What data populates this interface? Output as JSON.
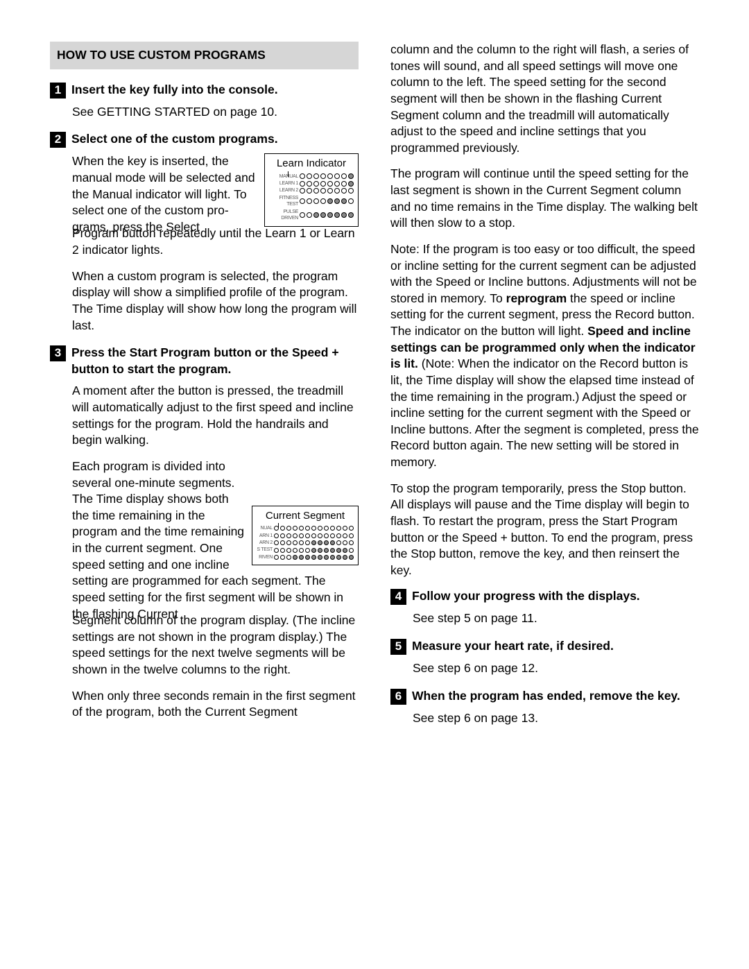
{
  "header": "HOW TO USE CUSTOM PROGRAMS",
  "col1": {
    "step1": {
      "num": "1",
      "title": "Insert the key fully into the console.",
      "p1": "See GETTING STARTED on page 10."
    },
    "step2": {
      "num": "2",
      "title": "Select one of the custom programs.",
      "p1a": "When the key is in­serted, the manual mode will be selected and the Manual indica­tor will light. To select one of the custom pro­grams, press the Select",
      "p1b": "Program button repeatedly until the Learn 1 or Learn 2 indicator lights.",
      "p2": "When a custom program is selected, the program display will show a simplified profile of the pro­gram. The Time display will show how long the program will last.",
      "fig": {
        "title": "Learn Indicator",
        "labels": [
          "MANUAL",
          "LEARN 1",
          "LEARN 2",
          "FITNESS TEST",
          "PULSE DRIVEN"
        ],
        "cols": 8,
        "circ_size": 8,
        "label_w": 42,
        "filled": [
          [
            0,
            0,
            0,
            0,
            0,
            0,
            0,
            1
          ],
          [
            0,
            0,
            0,
            0,
            0,
            0,
            0,
            1
          ],
          [
            0,
            0,
            0,
            0,
            0,
            0,
            0,
            0
          ],
          [
            0,
            0,
            0,
            0,
            1,
            1,
            1,
            0
          ],
          [
            0,
            0,
            1,
            1,
            1,
            1,
            1,
            1
          ]
        ]
      }
    },
    "step3": {
      "num": "3",
      "title": "Press the Start Program button or the Speed + button to start the program.",
      "p1": "A moment after the button is pressed, the tread­mill will automatically adjust to the first speed and incline settings for the program. Hold the handrails and begin walking.",
      "p2a": "Each program is divided into several one-minute segments. The Time display shows both the time remaining in the program and the time remaining in the current segment. One speed setting and one incline setting are programmed for each segment. The speed setting for the first seg­ment will be shown in the flashing Current",
      "p2b": "Segment column of the program display. (The in­cline settings are not shown in the program dis­play.) The speed settings for the next twelve seg­ments will be shown in the twelve columns to the right.",
      "p3": "When only three seconds remain in the first seg­ment of the program, both the Current Segment",
      "fig": {
        "title": "Current Segment",
        "labels": [
          "NUAL",
          "ARN 1",
          "ARN 2",
          "S TEST",
          "RIVEN"
        ],
        "cols": 13,
        "circ_size": 7,
        "label_w": 23,
        "filled": [
          [
            0,
            0,
            0,
            0,
            0,
            0,
            0,
            0,
            0,
            0,
            0,
            0,
            0
          ],
          [
            0,
            0,
            0,
            0,
            0,
            0,
            0,
            0,
            0,
            0,
            0,
            0,
            0
          ],
          [
            0,
            0,
            0,
            0,
            0,
            0,
            1,
            1,
            1,
            1,
            0,
            0,
            0
          ],
          [
            0,
            0,
            0,
            0,
            0,
            0,
            1,
            1,
            1,
            1,
            1,
            1,
            0
          ],
          [
            0,
            0,
            0,
            1,
            1,
            1,
            1,
            1,
            1,
            1,
            1,
            1,
            1
          ]
        ]
      }
    }
  },
  "col2": {
    "p1": "column and the column to the right will flash, a se­ries of tones will sound, and all speed settings will move one column to the left. The speed setting for the second segment will then be shown in the flashing Current Segment column and the tread­mill will automatically adjust to the speed and in­cline settings that you programmed previously.",
    "p2": "The program will continue until the speed setting for the last segment is shown in the Current Segment column and no time remains in the Time display. The walking belt will then slow to a stop.",
    "p3a": "Note: If the program is too easy or too difficult, the speed or incline setting for the current segment can be adjusted with the Speed or Incline buttons. Adjustments will not be stored in memory. To ",
    "p3b": "repro­gram",
    "p3c": " the speed or incline setting for the current seg­ment, press the Record button. The indicator on the button will light. ",
    "p3d": "Speed and incline settings can be programmed only when the indicator is lit.",
    "p3e": " (Note: When the indicator on the Record button is lit, the Time display will show the elapsed time instead of the time remaining in the program.) Adjust the speed or incline setting for the current segment with the Speed or Incline buttons. After the segment is completed, press the Record button again. The new setting will be stored in memory.",
    "p4": "To stop the program temporarily, press the Stop button. All displays will pause and the Time display will begin to flash. To restart the program, press the Start Program button or the Speed + button. To end the program, press the Stop button, remove the key, and then reinsert the key.",
    "step4": {
      "num": "4",
      "title": "Follow your progress with the displays.",
      "p1": "See step 5 on page 11."
    },
    "step5": {
      "num": "5",
      "title": "Measure your heart rate, if desired.",
      "p1": "See step 6 on page 12."
    },
    "step6": {
      "num": "6",
      "title": "When the program has ended, remove the key.",
      "p1": "See step 6 on page 13."
    }
  }
}
